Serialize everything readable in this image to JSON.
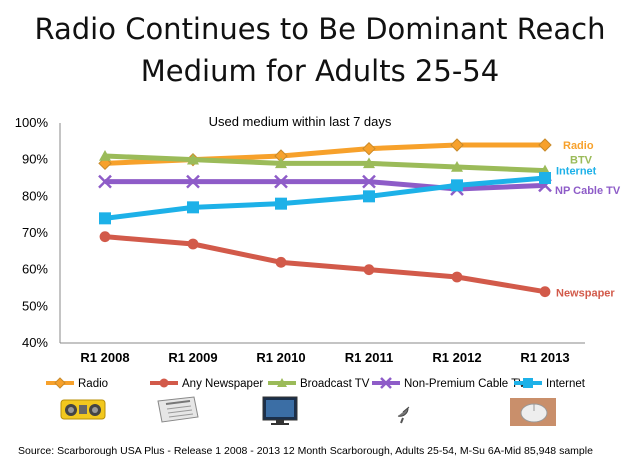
{
  "title_line1": "Radio Continues to Be Dominant Reach",
  "title_line2": "Medium for Adults 25-54",
  "source": "Source: Scarborough USA Plus - Release 1 2008 -  2013 12 Month Scarborough, Adults 25-54, M-Su 6A-Mid 85,948 sample",
  "icons": [
    "radio-icon",
    "newspaper-icon",
    "tv-icon",
    "satellite-dish-icon",
    "computer-mouse-icon"
  ],
  "chart_data": {
    "type": "line",
    "annotation": "Used medium within last 7 days",
    "categories": [
      "R1 2008",
      "R1 2009",
      "R1 2010",
      "R1 2011",
      "R1 2012",
      "R1 2013"
    ],
    "y_ticks": [
      "40%",
      "50%",
      "60%",
      "70%",
      "80%",
      "90%",
      "100%"
    ],
    "ylim": [
      40,
      100
    ],
    "grid": false,
    "legend_position": "bottom",
    "series": [
      {
        "name": "Radio",
        "end_label": "Radio",
        "color": "#F7A12B",
        "marker": "diamond",
        "values": [
          89,
          90,
          91,
          93,
          94,
          94
        ]
      },
      {
        "name": "Any Newspaper",
        "end_label": "Newspaper",
        "color": "#D25A4A",
        "marker": "circle",
        "values": [
          69,
          67,
          62,
          60,
          58,
          54
        ]
      },
      {
        "name": "Broadcast TV",
        "end_label": "BTV",
        "color": "#9BBB59",
        "marker": "triangle",
        "values": [
          91,
          90,
          89,
          89,
          88,
          87
        ]
      },
      {
        "name": "Non-Premium Cable TV",
        "end_label": "NP Cable TV",
        "color": "#8E5CC8",
        "marker": "x",
        "values": [
          84,
          84,
          84,
          84,
          82,
          83
        ]
      },
      {
        "name": "Internet",
        "end_label": "Internet",
        "color": "#1DB1E8",
        "marker": "square",
        "values": [
          74,
          77,
          78,
          80,
          83,
          85
        ]
      }
    ]
  }
}
